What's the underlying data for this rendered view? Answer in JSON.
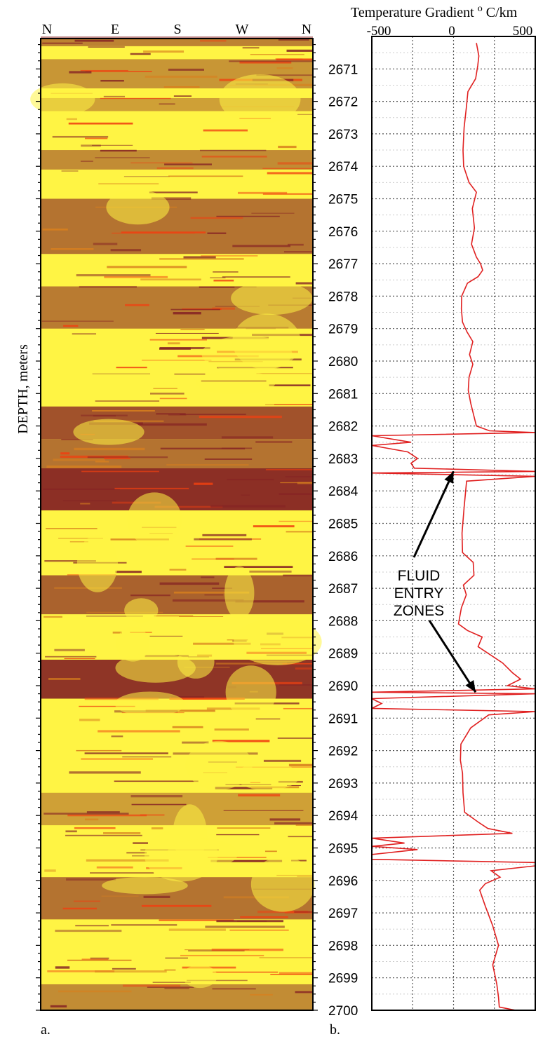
{
  "chart_data": [
    {
      "type": "heatmap",
      "panel_label": "a.",
      "x_ticks": [
        "N",
        "E",
        "S",
        "W",
        "N"
      ],
      "ylabel": "DEPTH, meters",
      "ylim": [
        2670,
        2700
      ],
      "colors": {
        "light": "#FFF444",
        "dark": "#862424",
        "mid": "#D8801E",
        "hot": "#F04010"
      },
      "dark_bands": [
        {
          "from": 2670.0,
          "to": 2670.3,
          "intensity": 0.55
        },
        {
          "from": 2670.7,
          "to": 2671.6,
          "intensity": 0.45
        },
        {
          "from": 2671.9,
          "to": 2672.3,
          "intensity": 0.4
        },
        {
          "from": 2673.5,
          "to": 2674.1,
          "intensity": 0.5
        },
        {
          "from": 2675.0,
          "to": 2676.7,
          "intensity": 0.62
        },
        {
          "from": 2677.7,
          "to": 2679.0,
          "intensity": 0.58
        },
        {
          "from": 2681.4,
          "to": 2682.4,
          "intensity": 0.78
        },
        {
          "from": 2682.4,
          "to": 2683.3,
          "intensity": 0.62
        },
        {
          "from": 2683.3,
          "to": 2684.6,
          "intensity": 0.95
        },
        {
          "from": 2686.6,
          "to": 2687.8,
          "intensity": 0.7
        },
        {
          "from": 2689.2,
          "to": 2690.4,
          "intensity": 0.92
        },
        {
          "from": 2693.3,
          "to": 2694.3,
          "intensity": 0.4
        },
        {
          "from": 2695.9,
          "to": 2697.2,
          "intensity": 0.62
        },
        {
          "from": 2699.2,
          "to": 2700.0,
          "intensity": 0.5
        }
      ]
    },
    {
      "type": "line",
      "panel_label": "b.",
      "title": "Temperature Gradient",
      "unit_prefix": "o",
      "unit": "C/km",
      "x_ticks": [
        -500,
        0,
        500
      ],
      "xlim": [
        -500,
        500
      ],
      "ylim": [
        2670,
        2700
      ],
      "y_ticks": [
        2671,
        2672,
        2673,
        2674,
        2675,
        2676,
        2677,
        2678,
        2679,
        2680,
        2681,
        2682,
        2683,
        2684,
        2685,
        2686,
        2687,
        2688,
        2689,
        2690,
        2691,
        2692,
        2693,
        2694,
        2695,
        2696,
        2697,
        2698,
        2699,
        2700
      ],
      "grid": true,
      "line_color": "#E02020",
      "annotation": {
        "lines": [
          "FLUID",
          "ENTRY",
          "ZONES"
        ],
        "arrow_targets": [
          {
            "x": 0,
            "y": 2683.4
          },
          {
            "x": 135,
            "y": 2690.2
          }
        ]
      },
      "series": [
        {
          "points": [
            [
              140,
              2670.2
            ],
            [
              155,
              2670.6
            ],
            [
              148,
              2670.9
            ],
            [
              135,
              2671.3
            ],
            [
              88,
              2671.7
            ],
            [
              78,
              2672.2
            ],
            [
              65,
              2672.8
            ],
            [
              58,
              2673.5
            ],
            [
              62,
              2674.0
            ],
            [
              95,
              2674.5
            ],
            [
              140,
              2674.8
            ],
            [
              115,
              2675.3
            ],
            [
              128,
              2675.9
            ],
            [
              110,
              2676.4
            ],
            [
              140,
              2676.8
            ],
            [
              165,
              2677.0
            ],
            [
              178,
              2677.2
            ],
            [
              150,
              2677.4
            ],
            [
              85,
              2677.6
            ],
            [
              50,
              2678.0
            ],
            [
              48,
              2678.4
            ],
            [
              55,
              2678.8
            ],
            [
              82,
              2679.1
            ],
            [
              118,
              2679.4
            ],
            [
              98,
              2679.8
            ],
            [
              118,
              2680.1
            ],
            [
              95,
              2680.5
            ],
            [
              90,
              2680.9
            ],
            [
              105,
              2681.3
            ],
            [
              125,
              2681.7
            ],
            [
              140,
              2682.0
            ],
            [
              220,
              2682.15
            ],
            [
              500,
              2682.2
            ],
            [
              -500,
              2682.3
            ],
            [
              -260,
              2682.5
            ],
            [
              -500,
              2682.6
            ],
            [
              -280,
              2682.8
            ],
            [
              -220,
              2683.0
            ],
            [
              -260,
              2683.15
            ],
            [
              -240,
              2683.3
            ],
            [
              500,
              2683.4
            ],
            [
              -500,
              2683.45
            ],
            [
              500,
              2683.55
            ],
            [
              80,
              2683.7
            ],
            [
              65,
              2684.5
            ],
            [
              52,
              2685.3
            ],
            [
              55,
              2685.9
            ],
            [
              120,
              2686.2
            ],
            [
              125,
              2686.6
            ],
            [
              60,
              2686.9
            ],
            [
              78,
              2687.2
            ],
            [
              48,
              2687.6
            ],
            [
              30,
              2688.1
            ],
            [
              85,
              2688.3
            ],
            [
              175,
              2688.5
            ],
            [
              150,
              2688.8
            ],
            [
              300,
              2689.3
            ],
            [
              360,
              2689.6
            ],
            [
              410,
              2689.8
            ],
            [
              330,
              2690.0
            ],
            [
              500,
              2690.1
            ],
            [
              -500,
              2690.2
            ],
            [
              500,
              2690.25
            ],
            [
              -500,
              2690.4
            ],
            [
              -440,
              2690.55
            ],
            [
              -500,
              2690.7
            ],
            [
              500,
              2690.8
            ],
            [
              215,
              2690.9
            ],
            [
              105,
              2691.3
            ],
            [
              45,
              2691.8
            ],
            [
              42,
              2692.3
            ],
            [
              55,
              2692.7
            ],
            [
              58,
              2693.3
            ],
            [
              68,
              2693.9
            ],
            [
              150,
              2694.2
            ],
            [
              210,
              2694.4
            ],
            [
              360,
              2694.55
            ],
            [
              -500,
              2694.7
            ],
            [
              -300,
              2694.85
            ],
            [
              -500,
              2694.95
            ],
            [
              -220,
              2695.05
            ],
            [
              -500,
              2695.2
            ],
            [
              -500,
              2695.35
            ],
            [
              500,
              2695.45
            ],
            [
              500,
              2695.55
            ],
            [
              230,
              2695.7
            ],
            [
              285,
              2695.9
            ],
            [
              195,
              2696.1
            ],
            [
              160,
              2696.3
            ],
            [
              195,
              2696.8
            ],
            [
              240,
              2697.4
            ],
            [
              275,
              2698.0
            ],
            [
              240,
              2698.6
            ],
            [
              265,
              2699.2
            ],
            [
              275,
              2699.6
            ],
            [
              280,
              2699.9
            ],
            [
              380,
              2700.0
            ]
          ]
        }
      ]
    }
  ]
}
